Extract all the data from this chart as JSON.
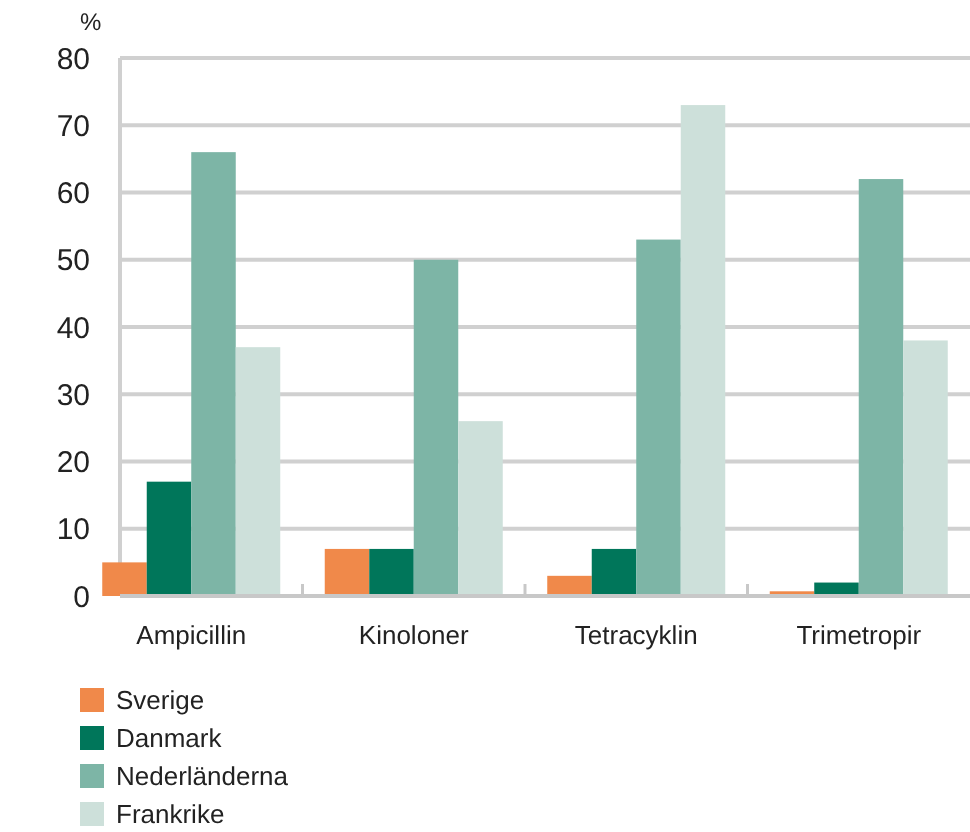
{
  "chart_data": {
    "type": "bar",
    "ylabel": "%",
    "categories": [
      "Ampicillin",
      "Kinoloner",
      "Tetracyklin",
      "Trimetropir"
    ],
    "series": [
      {
        "name": "Sverige",
        "color": "#f0894a",
        "values": [
          5,
          7,
          3,
          0.7
        ]
      },
      {
        "name": "Danmark",
        "color": "#00765a",
        "values": [
          17,
          7,
          7,
          2
        ]
      },
      {
        "name": "Nederländerna",
        "color": "#7db5a6",
        "values": [
          66,
          50,
          53,
          62
        ]
      },
      {
        "name": "Frankrike",
        "color": "#cde0da",
        "values": [
          37,
          26,
          73,
          38
        ]
      }
    ],
    "ylim": [
      0,
      80
    ],
    "yticks": [
      0,
      10,
      20,
      30,
      40,
      50,
      60,
      70,
      80
    ],
    "grid": "y",
    "legend": "bottom left"
  }
}
